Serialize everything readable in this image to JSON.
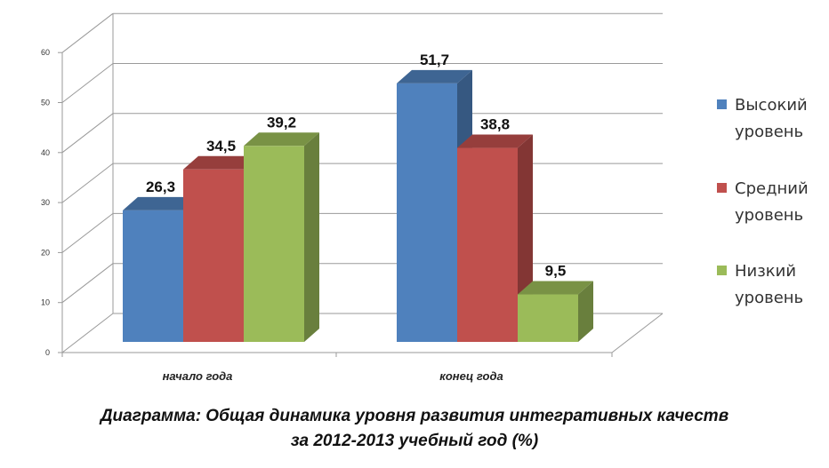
{
  "chart_data": {
    "type": "bar",
    "categories": [
      "начало года",
      "конец года"
    ],
    "series": [
      {
        "name": "Высокий уровень",
        "values": [
          26.3,
          51.7
        ],
        "labels": [
          "26,3",
          "51,7"
        ],
        "color": "#4f81bd"
      },
      {
        "name": "Средний уровень",
        "values": [
          34.5,
          38.8
        ],
        "labels": [
          "34,5",
          "38,8"
        ],
        "color": "#c0504d"
      },
      {
        "name": "Низкий уровень",
        "values": [
          39.2,
          9.5
        ],
        "labels": [
          "39,2",
          "9,5"
        ],
        "color": "#9bbb59"
      }
    ],
    "yticks": [
      "0",
      "10",
      "20",
      "30",
      "40",
      "50",
      "60"
    ],
    "ylim": [
      0,
      60
    ],
    "grid": true,
    "legend_position": "right",
    "title_lines": [
      "Диаграмма: Общая динамика уровня развития интегративных качеств",
      "за 2012-2013 учебный год (%)"
    ]
  }
}
